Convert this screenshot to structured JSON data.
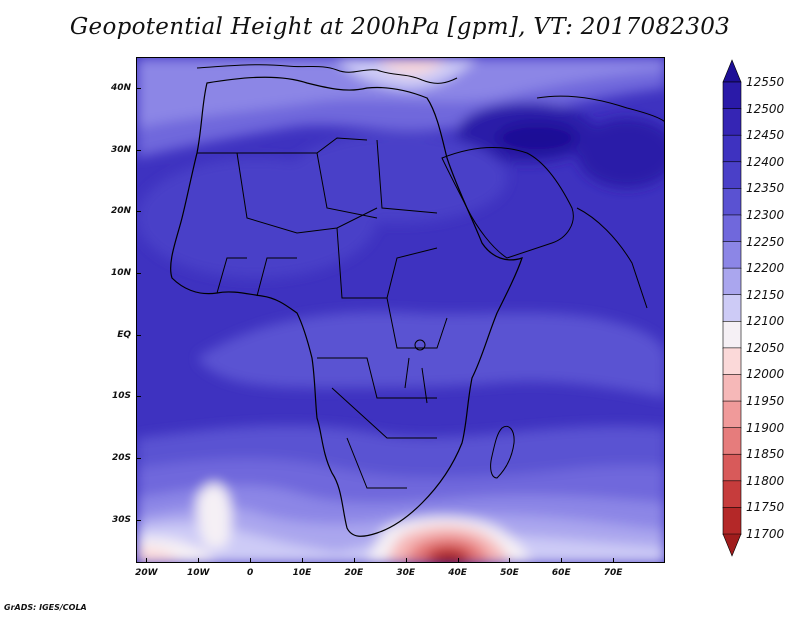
{
  "title": "Geopotential Height at 200hPa [gpm], VT: 2017082303",
  "credit": "GrADS: IGES/COLA",
  "map": {
    "projection": "latlon",
    "lon_range": [
      -22,
      80
    ],
    "lat_range": [
      -37,
      45
    ],
    "x_tick_labels": [
      {
        "label": "20W",
        "lon": -20
      },
      {
        "label": "10W",
        "lon": -10
      },
      {
        "label": "0",
        "lon": 0
      },
      {
        "label": "10E",
        "lon": 10
      },
      {
        "label": "20E",
        "lon": 20
      },
      {
        "label": "30E",
        "lon": 30
      },
      {
        "label": "40E",
        "lon": 40
      },
      {
        "label": "50E",
        "lon": 50
      },
      {
        "label": "60E",
        "lon": 60
      },
      {
        "label": "70E",
        "lon": 70
      }
    ],
    "y_tick_labels": [
      {
        "label": "40N",
        "lat": 40
      },
      {
        "label": "30N",
        "lat": 30
      },
      {
        "label": "20N",
        "lat": 20
      },
      {
        "label": "10N",
        "lat": 10
      },
      {
        "label": "EQ",
        "lat": 0
      },
      {
        "label": "10S",
        "lat": -10
      },
      {
        "label": "20S",
        "lat": -20
      },
      {
        "label": "30S",
        "lat": -30
      }
    ]
  },
  "colorbar": {
    "levels": [
      12550,
      12500,
      12450,
      12400,
      12350,
      12300,
      12250,
      12200,
      12150,
      12100,
      12050,
      12000,
      11950,
      11900,
      11850,
      11800,
      11750,
      11700
    ],
    "colors_top_to_bottom": [
      "#1e0f96",
      "#2a1aa8",
      "#3525b4",
      "#3e32c0",
      "#4a40c8",
      "#5a52d2",
      "#7068dc",
      "#8c86e6",
      "#aaa6ee",
      "#cdcbf6",
      "#f5f0f5",
      "#fbd9d9",
      "#f6b8b8",
      "#f09a9a",
      "#e67c7c",
      "#d85a5a",
      "#c63c3c",
      "#b42828",
      "#a01c1c"
    ]
  }
}
